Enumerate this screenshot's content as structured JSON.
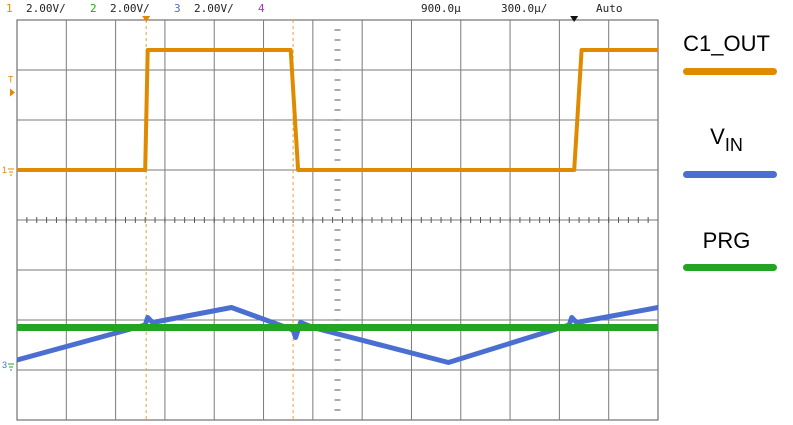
{
  "header": {
    "channels": [
      {
        "num": "1",
        "scale": "2.00V/",
        "color": "#e08a00"
      },
      {
        "num": "2",
        "scale": "2.00V/",
        "color": "#22a522"
      },
      {
        "num": "3",
        "scale": "2.00V/",
        "color": "#4a6fd0"
      },
      {
        "num": "4",
        "scale": "",
        "color": "#b030c0"
      }
    ],
    "time_offset": "900.0µ",
    "time_scale": "300.0µ/",
    "trigger_mode": "Auto"
  },
  "markers": {
    "trigger_level": "T",
    "ch1_ground": "1",
    "ch3_ground": "3"
  },
  "legend": [
    {
      "label": "C1_OUT",
      "sub": "",
      "color": "#e08a00"
    },
    {
      "label": "V",
      "sub": "IN",
      "color": "#4a6fd0"
    },
    {
      "label": "PRG",
      "sub": "",
      "color": "#22a522"
    }
  ],
  "chart_data": {
    "type": "line",
    "x_unit": "div",
    "y_unit": "div",
    "xlim": [
      0,
      13
    ],
    "ylim": [
      -4,
      4
    ],
    "grid": true,
    "series": [
      {
        "channel": "1",
        "color": "#e08a00",
        "points": [
          [
            0,
            1.0
          ],
          [
            2.6,
            1.0
          ],
          [
            2.65,
            3.4
          ],
          [
            5.55,
            3.4
          ],
          [
            5.7,
            1.0
          ],
          [
            11.3,
            1.0
          ],
          [
            11.45,
            3.4
          ],
          [
            13,
            3.4
          ]
        ]
      },
      {
        "channel": "3",
        "color": "#4a6fd0",
        "points": [
          [
            0,
            -2.8
          ],
          [
            2.6,
            -2.1
          ],
          [
            2.65,
            -1.95
          ],
          [
            2.75,
            -2.05
          ],
          [
            4.35,
            -1.75
          ],
          [
            5.6,
            -2.2
          ],
          [
            5.65,
            -2.35
          ],
          [
            5.75,
            -2.05
          ],
          [
            6.0,
            -2.15
          ],
          [
            8.75,
            -2.85
          ],
          [
            11.2,
            -2.1
          ],
          [
            11.25,
            -1.95
          ],
          [
            11.35,
            -2.05
          ],
          [
            13,
            -1.75
          ]
        ]
      },
      {
        "channel": "2",
        "color": "#22a522",
        "points": [
          [
            0,
            -2.15
          ],
          [
            13,
            -2.15
          ]
        ]
      }
    ]
  }
}
